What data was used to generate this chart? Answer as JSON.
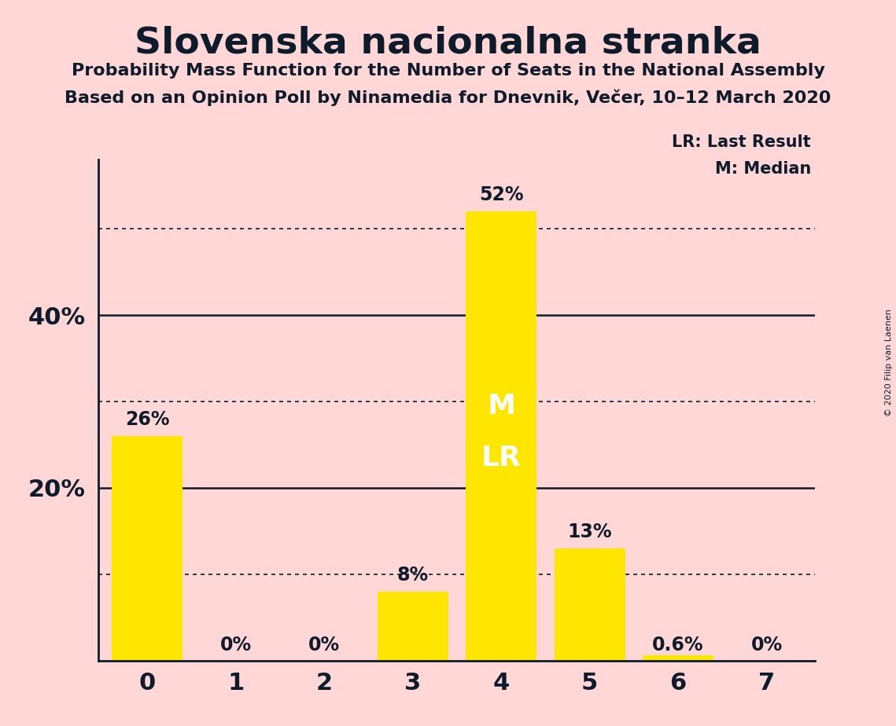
{
  "title": "Slovenska nacionalna stranka",
  "subtitle1": "Probability Mass Function for the Number of Seats in the National Assembly",
  "subtitle2": "Based on an Opinion Poll by Ninamedia for Dnevnik, Večer, 10–12 March 2020",
  "copyright": "© 2020 Filip van Laenen",
  "categories": [
    0,
    1,
    2,
    3,
    4,
    5,
    6,
    7
  ],
  "values": [
    0.26,
    0.0,
    0.0,
    0.08,
    0.52,
    0.13,
    0.006,
    0.0
  ],
  "labels": [
    "26%",
    "0%",
    "0%",
    "8%",
    "52%",
    "13%",
    "0.6%",
    "0%"
  ],
  "bar_color": "#FFE600",
  "background_color": "#FFD7D7",
  "text_color": "#0D1B2A",
  "ytick_positions": [
    0.2,
    0.4
  ],
  "ytick_labels": [
    "20%",
    "40%"
  ],
  "solid_grid_lines": [
    0.2,
    0.4
  ],
  "dotted_grid_lines": [
    0.1,
    0.3,
    0.5
  ],
  "ylim": [
    0,
    0.58
  ],
  "xlim": [
    -0.55,
    7.55
  ],
  "legend_lr": "LR: Last Result",
  "legend_m": "M: Median",
  "title_fontsize": 34,
  "subtitle_fontsize": 16,
  "label_fontsize": 17,
  "ytick_fontsize": 22,
  "xtick_fontsize": 22
}
